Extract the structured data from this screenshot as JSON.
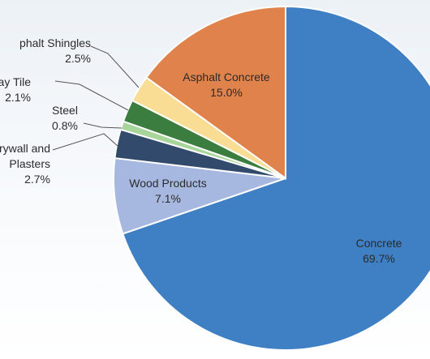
{
  "chart_data": {
    "type": "pie",
    "slices": [
      {
        "label_lines": [
          "Concrete",
          "69.7%"
        ],
        "value": 69.7,
        "color": "#3f7fc4"
      },
      {
        "label_lines": [
          "Wood Products",
          "7.1%"
        ],
        "value": 7.1,
        "color": "#a7b8e0"
      },
      {
        "label_lines": [
          "rywall and",
          "Plasters",
          "2.7%"
        ],
        "value": 2.7,
        "color": "#324a6b"
      },
      {
        "label_lines": [
          "Steel",
          "0.8%"
        ],
        "value": 0.8,
        "color": "#a8d59a"
      },
      {
        "label_lines": [
          "and Clay Tile",
          "2.1%"
        ],
        "value": 2.1,
        "color": "#3a7d3e"
      },
      {
        "label_lines": [
          "phalt Shingles",
          "2.5%"
        ],
        "value": 2.5,
        "color": "#fadd95"
      },
      {
        "label_lines": [
          "Asphalt Concrete",
          "15.0%"
        ],
        "value": 15.0,
        "color": "#e0824b"
      }
    ],
    "start_angle_deg": 0,
    "direction": "clockwise"
  }
}
